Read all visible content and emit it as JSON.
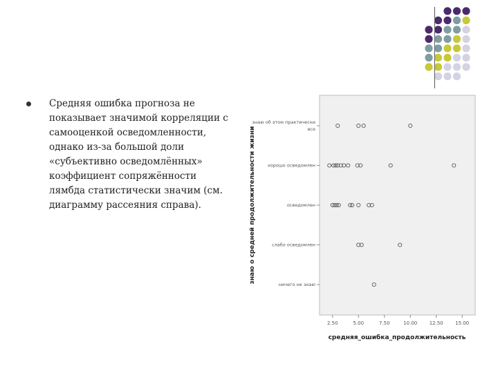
{
  "slide": {
    "text": "Средняя ошибка прогноза не показывает значимой корреляции с самооценкой осведомленности, однако из-за большой доли «субъективно осведомлённых» коэффициент сопряжённости лямбда статистически значим (см. диаграмму рассеяния справа)."
  },
  "decoration": {
    "colors": [
      "#4b2a6b",
      "#7f9ea3",
      "#c7c83a",
      "#d3d3e3"
    ]
  },
  "chart_data": {
    "type": "scatter",
    "xlabel": "средняя_ошибка_продолжительность",
    "ylabel": "знаю о средней продолжительности жизни",
    "xlim": [
      1.25,
      16.25
    ],
    "xticks": [
      2.5,
      5.0,
      7.5,
      10.0,
      12.5,
      15.0
    ],
    "xtick_labels": [
      "2.50",
      "5.00",
      "7.50",
      "10.00",
      "12.50",
      "15.00"
    ],
    "categories": [
      "знаю об этом практически все",
      "хорошо осведомлен",
      "осведомлен",
      "слабо осведомлен",
      "ничего не знаю"
    ],
    "grid": false,
    "points": [
      {
        "x": 3.0,
        "y": "знаю об этом практически все"
      },
      {
        "x": 5.0,
        "y": "знаю об этом практически все"
      },
      {
        "x": 5.5,
        "y": "знаю об этом практически все"
      },
      {
        "x": 10.0,
        "y": "знаю об этом практически все"
      },
      {
        "x": 2.2,
        "y": "хорошо осведомлен"
      },
      {
        "x": 2.6,
        "y": "хорошо осведомлен"
      },
      {
        "x": 2.8,
        "y": "хорошо осведомлен"
      },
      {
        "x": 3.0,
        "y": "хорошо осведомлен"
      },
      {
        "x": 3.3,
        "y": "хорошо осведомлен"
      },
      {
        "x": 3.6,
        "y": "хорошо осведомлен"
      },
      {
        "x": 4.0,
        "y": "хорошо осведомлен"
      },
      {
        "x": 4.9,
        "y": "хорошо осведомлен"
      },
      {
        "x": 5.2,
        "y": "хорошо осведомлен"
      },
      {
        "x": 8.1,
        "y": "хорошо осведомлен"
      },
      {
        "x": 14.2,
        "y": "хорошо осведомлен"
      },
      {
        "x": 2.5,
        "y": "осведомлен"
      },
      {
        "x": 2.7,
        "y": "осведомлен"
      },
      {
        "x": 2.9,
        "y": "осведомлен"
      },
      {
        "x": 3.1,
        "y": "осведомлен"
      },
      {
        "x": 4.2,
        "y": "осведомлен"
      },
      {
        "x": 4.4,
        "y": "осведомлен"
      },
      {
        "x": 5.0,
        "y": "осведомлен"
      },
      {
        "x": 6.0,
        "y": "осведомлен"
      },
      {
        "x": 6.3,
        "y": "осведомлен"
      },
      {
        "x": 5.0,
        "y": "слабо осведомлен"
      },
      {
        "x": 5.3,
        "y": "слабо осведомлен"
      },
      {
        "x": 9.0,
        "y": "слабо осведомлен"
      },
      {
        "x": 6.5,
        "y": "ничего не знаю"
      }
    ]
  }
}
